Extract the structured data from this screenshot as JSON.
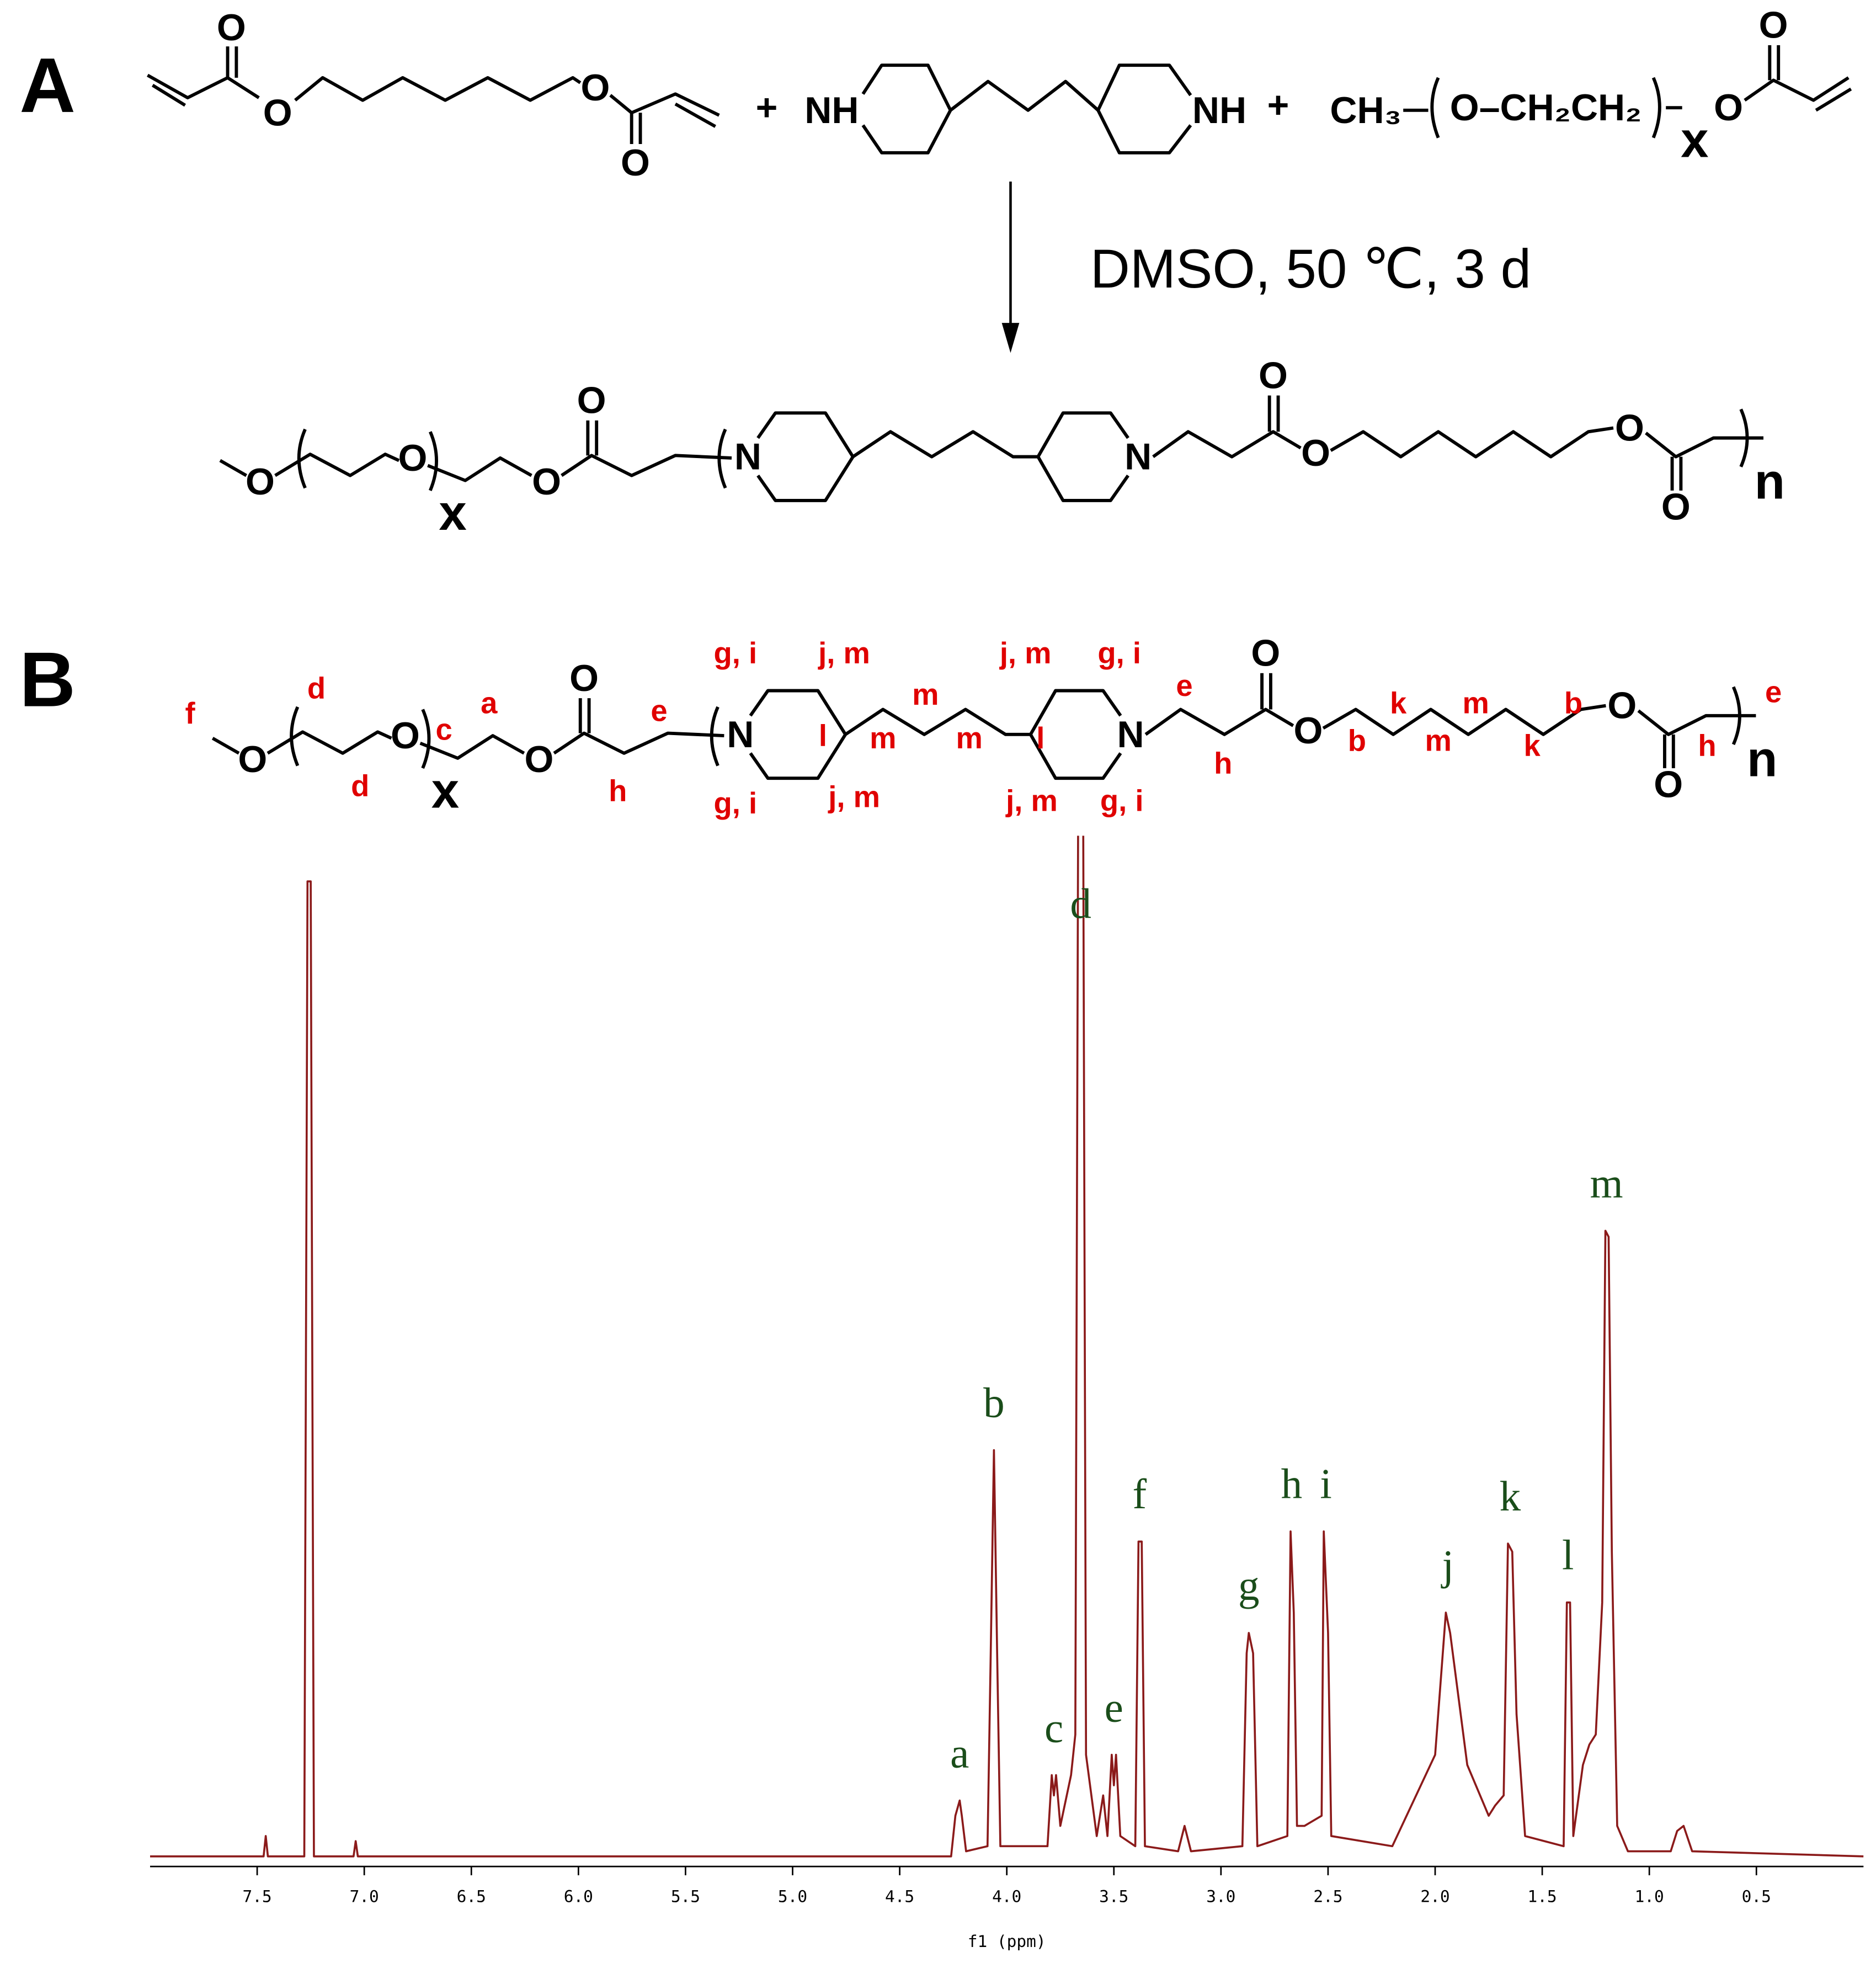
{
  "scheme_a": {
    "label": "A",
    "atoms": [
      "O",
      "O",
      "O",
      "O",
      "+",
      "NH",
      "NH",
      "+",
      "CH₃",
      "O–CH₂CH₂",
      "x",
      "O",
      "O",
      "O",
      "O",
      "x",
      "O",
      "O",
      "N",
      "N",
      "O",
      "O",
      "O",
      "O",
      "n"
    ],
    "condition": "DMSO, 50 ℃, 3 d"
  },
  "scheme_b": {
    "label": "B",
    "atoms": [
      "O",
      "O",
      "x",
      "O",
      "O",
      "N",
      "N",
      "O",
      "O",
      "O",
      "O",
      "n"
    ],
    "labels": [
      "f",
      "d",
      "d",
      "c",
      "a",
      "e",
      "h",
      "g, i",
      "g, i",
      "j, m",
      "j, m",
      "l",
      "m",
      "m",
      "m",
      "l",
      "j, m",
      "j, m",
      "g, i",
      "g, i",
      "e",
      "h",
      "b",
      "k",
      "m",
      "m",
      "k",
      "b",
      "h",
      "e"
    ]
  },
  "chart_data": {
    "type": "line",
    "x_label": "f1 (ppm)",
    "x": [
      8.0,
      7.47,
      7.46,
      7.45,
      7.28,
      7.265,
      7.25,
      7.235,
      7.05,
      7.04,
      7.03,
      5.2,
      4.26,
      4.24,
      4.22,
      4.21,
      4.19,
      4.09,
      4.075,
      4.06,
      4.045,
      4.03,
      3.81,
      3.79,
      3.78,
      3.77,
      3.75,
      3.7,
      3.68,
      3.665,
      3.645,
      3.63,
      3.58,
      3.55,
      3.53,
      3.51,
      3.5,
      3.49,
      3.47,
      3.4,
      3.385,
      3.37,
      3.355,
      3.2,
      3.17,
      3.14,
      2.9,
      2.88,
      2.87,
      2.85,
      2.83,
      2.69,
      2.675,
      2.66,
      2.645,
      2.61,
      2.53,
      2.52,
      2.5,
      2.485,
      2.2,
      2.0,
      1.95,
      1.93,
      1.85,
      1.75,
      1.72,
      1.68,
      1.66,
      1.64,
      1.62,
      1.58,
      1.4,
      1.385,
      1.37,
      1.355,
      1.31,
      1.28,
      1.25,
      1.22,
      1.205,
      1.19,
      1.175,
      1.15,
      1.1,
      0.9,
      0.87,
      0.84,
      0.8,
      0.0
    ],
    "series": [
      {
        "color": "#8b1a1a",
        "values": [
          0,
          0,
          2,
          0,
          0,
          96,
          96,
          0,
          0,
          1.5,
          0,
          0,
          0,
          4,
          5.5,
          4,
          0.5,
          1,
          20,
          40,
          20,
          1,
          1,
          8,
          6,
          8,
          3,
          8,
          12,
          115,
          115,
          10,
          2,
          6,
          2,
          10,
          7,
          10,
          2,
          1,
          31,
          31,
          1,
          0.5,
          3,
          0.5,
          1,
          20,
          22,
          20,
          1,
          2,
          32,
          24,
          3,
          3,
          4,
          32,
          22,
          2,
          1,
          10,
          24,
          22,
          9,
          4,
          5,
          6,
          30.8,
          30,
          14,
          2,
          1,
          25,
          25,
          2,
          9,
          11,
          12,
          25,
          61.6,
          61,
          30,
          3,
          0.5,
          0.5,
          2.5,
          3,
          0.5,
          0
        ]
      }
    ],
    "xlim": [
      8.0,
      0.0
    ],
    "ylim": [
      -1,
      100
    ],
    "xticks": [
      7.5,
      {
        "value": 7,
        "label": "7.0"
      },
      6.5,
      {
        "value": 6,
        "label": "6.0"
      },
      5.5,
      {
        "value": 5,
        "label": "5.0"
      },
      4.5,
      {
        "value": 4,
        "label": "4.0"
      },
      3.5,
      {
        "value": 3,
        "label": "3.0"
      },
      2.5,
      {
        "value": 2,
        "label": "2.0"
      },
      1.5,
      {
        "value": 1,
        "label": "1.0"
      },
      0.5
    ],
    "annotation_color": "#1a4d1a",
    "annotations": [
      {
        "text": "a",
        "x": 4.22
      },
      {
        "text": "b",
        "x": 4.06
      },
      {
        "text": "c",
        "x": 3.78
      },
      {
        "text": "d",
        "x": 3.655
      },
      {
        "text": "e",
        "x": 3.5
      },
      {
        "text": "f",
        "x": 3.38
      },
      {
        "text": "g",
        "x": 2.87
      },
      {
        "text": "h",
        "x": 2.67
      },
      {
        "text": "i",
        "x": 2.51
      },
      {
        "text": "j",
        "x": 1.94
      },
      {
        "text": "k",
        "x": 1.65
      },
      {
        "text": "l",
        "x": 1.38
      },
      {
        "text": "m",
        "x": 1.2
      }
    ]
  }
}
